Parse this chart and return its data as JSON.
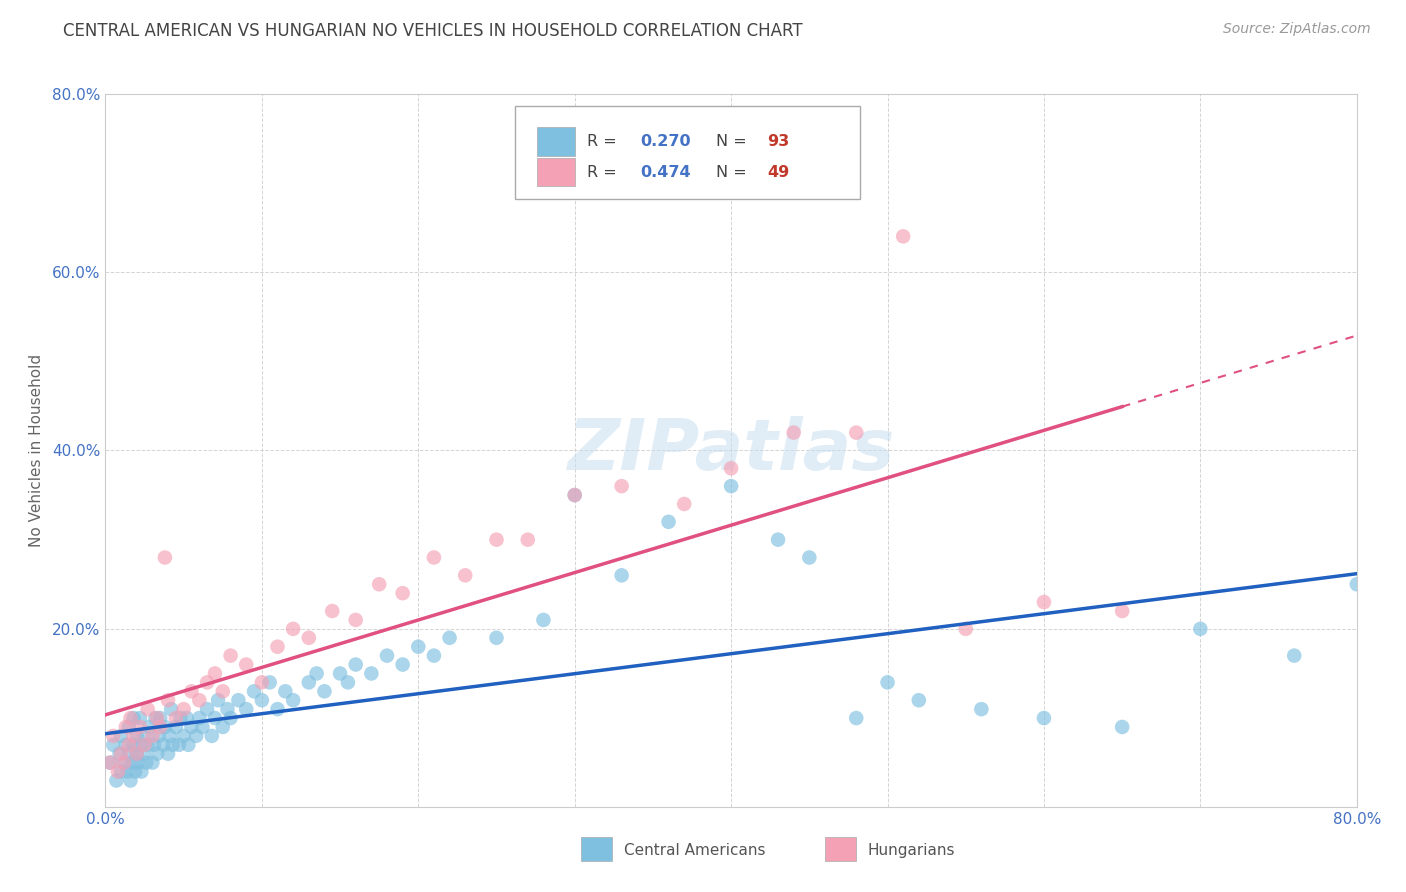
{
  "title": "CENTRAL AMERICAN VS HUNGARIAN NO VEHICLES IN HOUSEHOLD CORRELATION CHART",
  "source": "Source: ZipAtlas.com",
  "ylabel": "No Vehicles in Household",
  "xlim": [
    0.0,
    0.8
  ],
  "ylim": [
    0.0,
    0.8
  ],
  "color_blue": "#7fbfdf",
  "color_pink": "#f4a0b5",
  "color_blue_line": "#2060c0",
  "color_pink_line": "#e05080",
  "background_color": "#ffffff",
  "grid_color": "#d0d0d0",
  "tick_color": "#4472c4",
  "watermark_text": "ZIPatlas",
  "ca_x": [
    0.003,
    0.005,
    0.007,
    0.009,
    0.01,
    0.01,
    0.012,
    0.013,
    0.014,
    0.015,
    0.015,
    0.016,
    0.017,
    0.018,
    0.018,
    0.019,
    0.02,
    0.02,
    0.021,
    0.022,
    0.022,
    0.023,
    0.024,
    0.025,
    0.026,
    0.027,
    0.028,
    0.03,
    0.031,
    0.032,
    0.033,
    0.034,
    0.035,
    0.037,
    0.038,
    0.04,
    0.041,
    0.042,
    0.043,
    0.045,
    0.047,
    0.048,
    0.05,
    0.052,
    0.053,
    0.055,
    0.058,
    0.06,
    0.062,
    0.065,
    0.068,
    0.07,
    0.072,
    0.075,
    0.078,
    0.08,
    0.085,
    0.09,
    0.095,
    0.1,
    0.105,
    0.11,
    0.115,
    0.12,
    0.13,
    0.135,
    0.14,
    0.15,
    0.155,
    0.16,
    0.17,
    0.18,
    0.19,
    0.2,
    0.21,
    0.22,
    0.25,
    0.28,
    0.3,
    0.33,
    0.36,
    0.4,
    0.43,
    0.45,
    0.48,
    0.5,
    0.52,
    0.56,
    0.6,
    0.65,
    0.7,
    0.76,
    0.8
  ],
  "ca_y": [
    0.05,
    0.07,
    0.03,
    0.06,
    0.04,
    0.08,
    0.05,
    0.07,
    0.04,
    0.06,
    0.09,
    0.03,
    0.05,
    0.07,
    0.1,
    0.04,
    0.06,
    0.08,
    0.05,
    0.07,
    0.1,
    0.04,
    0.06,
    0.08,
    0.05,
    0.07,
    0.09,
    0.05,
    0.07,
    0.1,
    0.06,
    0.08,
    0.1,
    0.07,
    0.09,
    0.06,
    0.08,
    0.11,
    0.07,
    0.09,
    0.07,
    0.1,
    0.08,
    0.1,
    0.07,
    0.09,
    0.08,
    0.1,
    0.09,
    0.11,
    0.08,
    0.1,
    0.12,
    0.09,
    0.11,
    0.1,
    0.12,
    0.11,
    0.13,
    0.12,
    0.14,
    0.11,
    0.13,
    0.12,
    0.14,
    0.15,
    0.13,
    0.15,
    0.14,
    0.16,
    0.15,
    0.17,
    0.16,
    0.18,
    0.17,
    0.19,
    0.19,
    0.21,
    0.35,
    0.26,
    0.32,
    0.36,
    0.3,
    0.28,
    0.1,
    0.14,
    0.12,
    0.11,
    0.1,
    0.09,
    0.2,
    0.17,
    0.25
  ],
  "hu_x": [
    0.003,
    0.005,
    0.008,
    0.01,
    0.012,
    0.013,
    0.015,
    0.016,
    0.018,
    0.02,
    0.022,
    0.025,
    0.027,
    0.03,
    0.033,
    0.035,
    0.038,
    0.04,
    0.045,
    0.05,
    0.055,
    0.06,
    0.065,
    0.07,
    0.075,
    0.08,
    0.09,
    0.1,
    0.11,
    0.12,
    0.13,
    0.145,
    0.16,
    0.175,
    0.19,
    0.21,
    0.23,
    0.25,
    0.27,
    0.3,
    0.33,
    0.37,
    0.4,
    0.44,
    0.48,
    0.51,
    0.55,
    0.6,
    0.65
  ],
  "hu_y": [
    0.05,
    0.08,
    0.04,
    0.06,
    0.05,
    0.09,
    0.07,
    0.1,
    0.08,
    0.06,
    0.09,
    0.07,
    0.11,
    0.08,
    0.1,
    0.09,
    0.28,
    0.12,
    0.1,
    0.11,
    0.13,
    0.12,
    0.14,
    0.15,
    0.13,
    0.17,
    0.16,
    0.14,
    0.18,
    0.2,
    0.19,
    0.22,
    0.21,
    0.25,
    0.24,
    0.28,
    0.26,
    0.3,
    0.3,
    0.35,
    0.36,
    0.34,
    0.38,
    0.42,
    0.42,
    0.64,
    0.2,
    0.23,
    0.22
  ]
}
